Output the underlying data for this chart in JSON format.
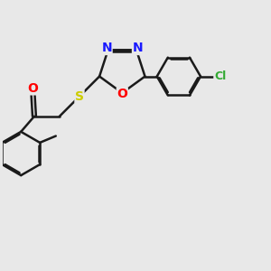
{
  "bg_color": "#e8e8e8",
  "bond_color": "#1a1a1a",
  "bond_width": 1.8,
  "dbo": 0.055,
  "atom_colors": {
    "N": "#1a1aff",
    "O": "#ff0000",
    "S": "#cccc00",
    "Cl": "#33aa33"
  },
  "fs": 10
}
